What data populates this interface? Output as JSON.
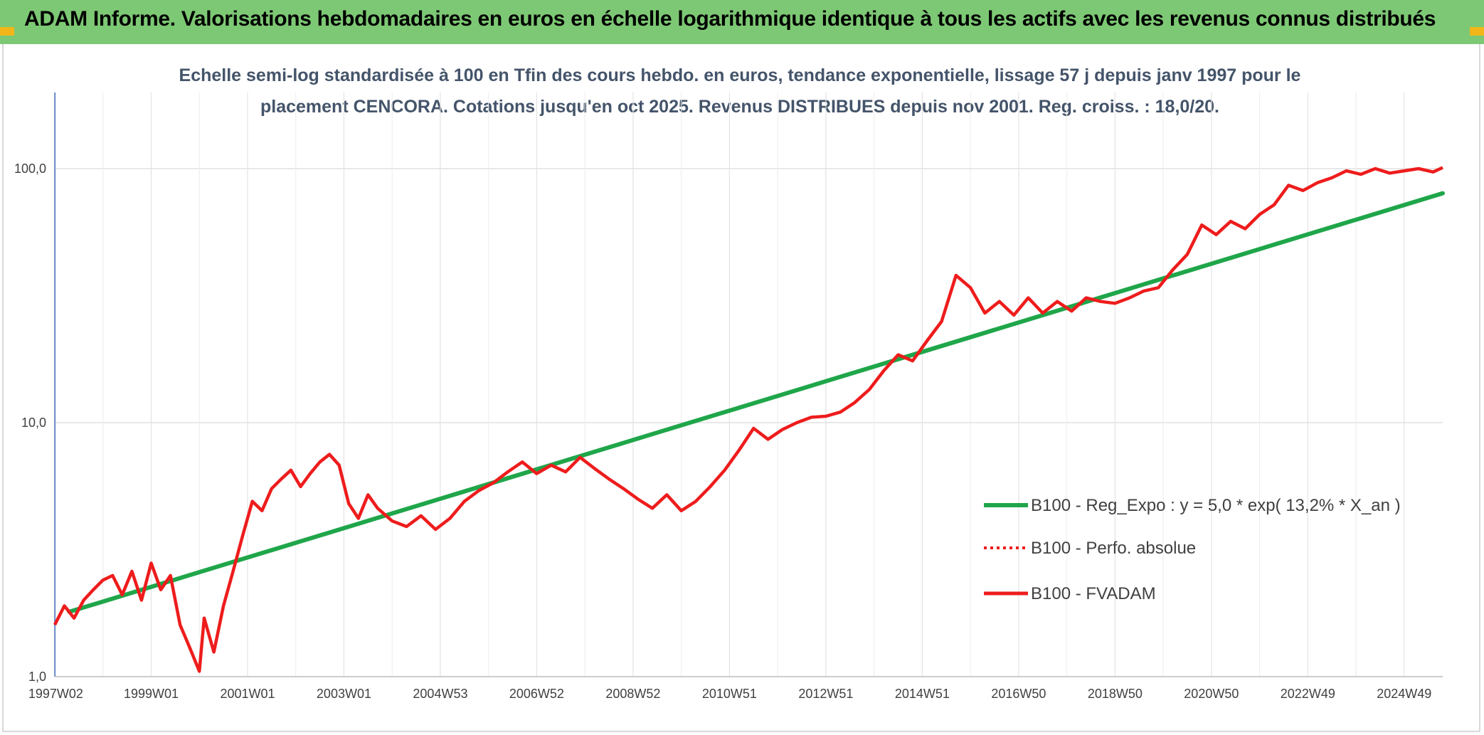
{
  "header": {
    "title": "ADAM Informe. Valorisations hebdomadaires en euros en échelle logarithmique identique à tous les actifs avec les revenus connus distribués"
  },
  "chart_data": {
    "type": "line",
    "title_lines": [
      "Echelle semi-log standardisée à 100 en Tfin des cours hebdo. en euros, tendance exponentielle, lissage 57 j depuis janv 1997 pour le",
      "placement CENCORA. Cotations jusqu'en oct 2025. Revenus DISTRIBUES depuis nov 2001. Reg. croiss. : 18,0/20."
    ],
    "y_scale": "log",
    "ylim": [
      1,
      200
    ],
    "y_ticks": [
      {
        "value": 1,
        "label": "1,0"
      },
      {
        "value": 10,
        "label": "10,0"
      },
      {
        "value": 100,
        "label": "100,0"
      }
    ],
    "xlim": [
      1997.0,
      2025.8
    ],
    "x_ticks": [
      {
        "value": 1997.02,
        "label": "1997W02"
      },
      {
        "value": 1999.0,
        "label": "1999W01"
      },
      {
        "value": 2001.0,
        "label": "2001W01"
      },
      {
        "value": 2003.0,
        "label": "2003W01"
      },
      {
        "value": 2005.0,
        "label": "2004W53"
      },
      {
        "value": 2007.0,
        "label": "2006W52"
      },
      {
        "value": 2009.0,
        "label": "2008W52"
      },
      {
        "value": 2011.0,
        "label": "2010W51"
      },
      {
        "value": 2013.0,
        "label": "2012W51"
      },
      {
        "value": 2015.0,
        "label": "2014W51"
      },
      {
        "value": 2017.0,
        "label": "2016W50"
      },
      {
        "value": 2019.0,
        "label": "2018W50"
      },
      {
        "value": 2021.0,
        "label": "2020W50"
      },
      {
        "value": 2023.0,
        "label": "2022W49"
      },
      {
        "value": 2025.0,
        "label": "2024W49"
      }
    ],
    "grid": true,
    "legend_position": "right",
    "colors": {
      "trend": "#1fa64a",
      "fvadam": "#ee1c1c",
      "perfo": "#ee1c1c"
    },
    "series": [
      {
        "name": "B100 - Reg_Expo : y = 5,0 * exp( 13,2% *  X_an )",
        "style": "solid-thick",
        "x": [
          1997.3,
          2025.8
        ],
        "y": [
          1.8,
          80
        ]
      },
      {
        "name": "B100 - Perfo. absolue",
        "style": "dotted",
        "x": [],
        "y": []
      },
      {
        "name": "B100 - FVADAM",
        "style": "solid",
        "x": [
          1997.0,
          1997.2,
          1997.4,
          1997.6,
          1997.8,
          1998.0,
          1998.2,
          1998.4,
          1998.6,
          1998.8,
          1999.0,
          1999.2,
          1999.4,
          1999.6,
          1999.8,
          2000.0,
          2000.1,
          2000.3,
          2000.5,
          2000.7,
          2000.9,
          2001.1,
          2001.3,
          2001.5,
          2001.7,
          2001.9,
          2002.1,
          2002.3,
          2002.5,
          2002.7,
          2002.9,
          2003.1,
          2003.3,
          2003.5,
          2003.7,
          2004.0,
          2004.3,
          2004.6,
          2004.9,
          2005.2,
          2005.5,
          2005.8,
          2006.1,
          2006.4,
          2006.7,
          2007.0,
          2007.3,
          2007.6,
          2007.9,
          2008.2,
          2008.5,
          2008.8,
          2009.1,
          2009.4,
          2009.7,
          2010.0,
          2010.3,
          2010.6,
          2010.9,
          2011.2,
          2011.5,
          2011.8,
          2012.1,
          2012.4,
          2012.7,
          2013.0,
          2013.3,
          2013.6,
          2013.9,
          2014.2,
          2014.5,
          2014.8,
          2015.1,
          2015.4,
          2015.7,
          2016.0,
          2016.3,
          2016.6,
          2016.9,
          2017.2,
          2017.5,
          2017.8,
          2018.1,
          2018.4,
          2018.7,
          2019.0,
          2019.3,
          2019.6,
          2019.9,
          2020.2,
          2020.5,
          2020.8,
          2021.1,
          2021.4,
          2021.7,
          2022.0,
          2022.3,
          2022.6,
          2022.9,
          2023.2,
          2023.5,
          2023.8,
          2024.1,
          2024.4,
          2024.7,
          2025.0,
          2025.3,
          2025.6,
          2025.8
        ],
        "y": [
          1.6,
          1.9,
          1.7,
          2.0,
          2.2,
          2.4,
          2.5,
          2.1,
          2.6,
          2.0,
          2.8,
          2.2,
          2.5,
          1.6,
          1.3,
          1.05,
          1.7,
          1.25,
          1.9,
          2.6,
          3.6,
          4.9,
          4.5,
          5.5,
          6.0,
          6.5,
          5.6,
          6.3,
          7.0,
          7.5,
          6.8,
          4.8,
          4.2,
          5.2,
          4.6,
          4.1,
          3.9,
          4.3,
          3.8,
          4.2,
          4.9,
          5.4,
          5.8,
          6.4,
          7.0,
          6.3,
          6.8,
          6.4,
          7.3,
          6.6,
          6.0,
          5.5,
          5.0,
          4.6,
          5.2,
          4.5,
          4.9,
          5.6,
          6.5,
          7.8,
          9.5,
          8.6,
          9.4,
          10.0,
          10.5,
          10.6,
          11.0,
          12.0,
          13.5,
          16.0,
          18.5,
          17.5,
          21.0,
          25.0,
          38.0,
          34.0,
          27.0,
          30.0,
          26.5,
          31.0,
          27.0,
          30.0,
          27.5,
          31.0,
          30.0,
          29.5,
          31.0,
          33.0,
          34.0,
          40.0,
          46.0,
          60.0,
          55.0,
          62.0,
          58.0,
          66.0,
          72.0,
          86.0,
          82.0,
          88.0,
          92.0,
          98.0,
          95.0,
          100.0,
          96.0,
          98.0,
          100.0,
          97.0,
          101.0
        ]
      }
    ]
  }
}
